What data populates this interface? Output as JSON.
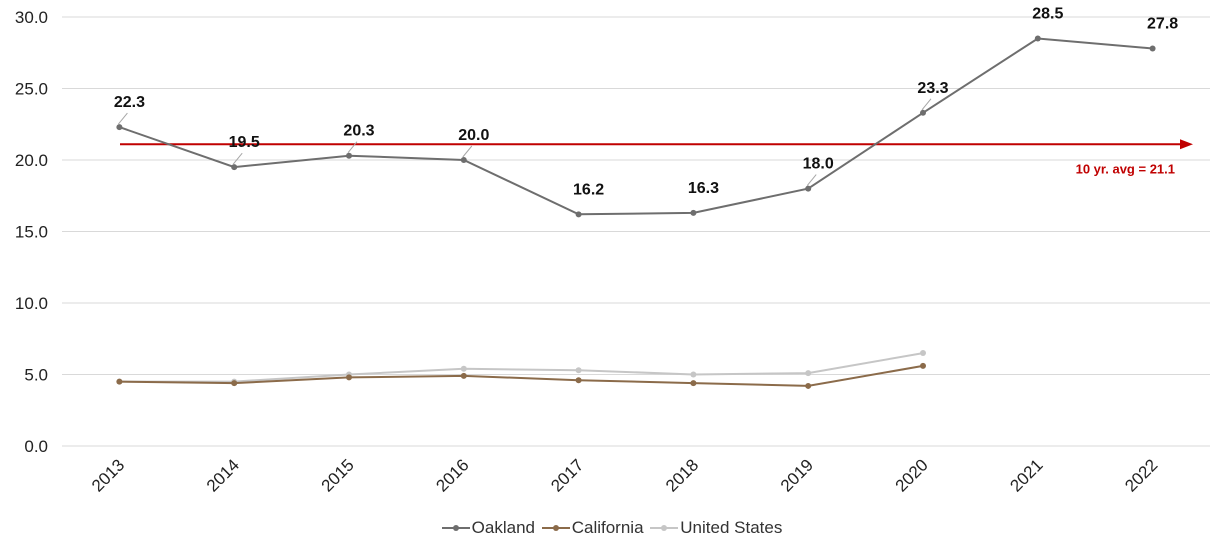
{
  "chart_data": {
    "type": "line",
    "categories": [
      "2013",
      "2014",
      "2015",
      "2016",
      "2017",
      "2018",
      "2019",
      "2020",
      "2021",
      "2022"
    ],
    "ylim": [
      0,
      30
    ],
    "yticks": [
      "0.0",
      "5.0",
      "10.0",
      "15.0",
      "20.0",
      "25.0",
      "30.0"
    ],
    "grid": true,
    "legend_position": "bottom",
    "series": [
      {
        "name": "Oakland",
        "color": "#6e6e6e",
        "values": [
          22.3,
          19.5,
          20.3,
          20.0,
          16.2,
          16.3,
          18.0,
          23.3,
          28.5,
          27.8
        ],
        "labels": [
          "22.3",
          "19.5",
          "20.3",
          "20.0",
          "16.2",
          "16.3",
          "18.0",
          "23.3",
          "28.5",
          "27.8"
        ]
      },
      {
        "name": "California",
        "color": "#8b6b4a",
        "values": [
          4.5,
          4.4,
          4.8,
          4.9,
          4.6,
          4.4,
          4.2,
          5.6,
          null,
          null
        ]
      },
      {
        "name": "United States",
        "color": "#c6c6c6",
        "values": [
          4.5,
          4.5,
          5.0,
          5.4,
          5.3,
          5.0,
          5.1,
          6.5,
          null,
          null
        ]
      }
    ],
    "reference_line": {
      "value": 21.1,
      "label": "10 yr. avg = 21.1",
      "color": "#c00000"
    }
  }
}
